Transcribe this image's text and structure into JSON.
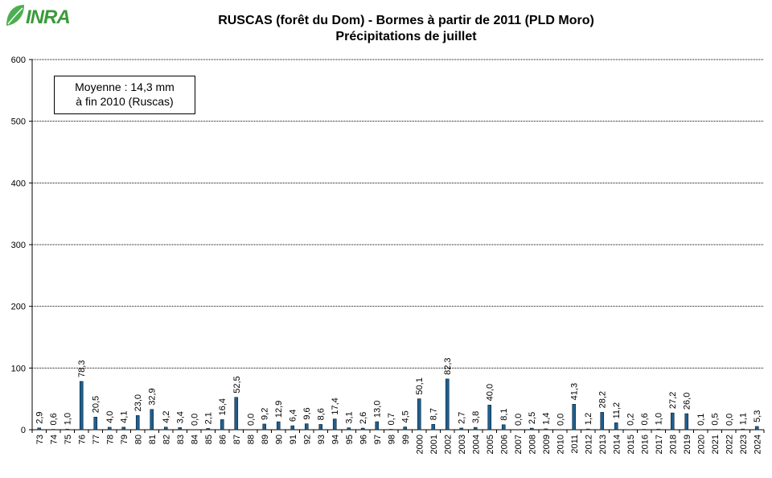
{
  "logo": {
    "text": "INRA"
  },
  "chart_data": {
    "type": "bar",
    "title": "RUSCAS (forêt du Dom) - Bormes à partir de 2011 (PLD Moro)",
    "subtitle": "Précipitations de juillet",
    "xlabel": "",
    "ylabel": "",
    "ylim": [
      0,
      600
    ],
    "yticks": [
      "0",
      "100",
      "200",
      "300",
      "400",
      "500",
      "600"
    ],
    "grid": true,
    "annotation": [
      "Moyenne : 14,3 mm",
      "à fin 2010 (Ruscas)"
    ],
    "categories": [
      "73",
      "74",
      "75",
      "76",
      "77",
      "78",
      "79",
      "80",
      "81",
      "82",
      "83",
      "84",
      "85",
      "86",
      "87",
      "88",
      "89",
      "90",
      "91",
      "92",
      "93",
      "94",
      "95",
      "96",
      "97",
      "98",
      "99",
      "2000",
      "2001",
      "2002",
      "2003",
      "2004",
      "2005",
      "2006",
      "2007",
      "2008",
      "2009",
      "2010",
      "2011",
      "2012",
      "2013",
      "2014",
      "2015",
      "2016",
      "2017",
      "2018",
      "2019",
      "2020",
      "2021",
      "2022",
      "2023",
      "2024"
    ],
    "values": [
      2.9,
      0.6,
      1.0,
      78.3,
      20.5,
      4.0,
      4.1,
      23.0,
      32.9,
      4.2,
      3.4,
      0.0,
      2.1,
      16.4,
      52.5,
      0.0,
      9.2,
      12.9,
      6.4,
      9.6,
      8.6,
      17.4,
      3.1,
      2.6,
      13.0,
      0.7,
      4.5,
      50.1,
      8.7,
      82.3,
      2.7,
      3.8,
      40.0,
      8.1,
      0.0,
      2.5,
      1.4,
      0.0,
      41.3,
      1.2,
      28.2,
      11.2,
      0.2,
      0.6,
      1.0,
      27.2,
      26.0,
      0.1,
      0.5,
      0.0,
      1.1,
      5.3
    ],
    "value_labels": [
      "2,9",
      "0,6",
      "1,0",
      "78,3",
      "20,5",
      "4,0",
      "4,1",
      "23,0",
      "32,9",
      "4,2",
      "3,4",
      "0,0",
      "2,1",
      "16,4",
      "52,5",
      "0,0",
      "9,2",
      "12,9",
      "6,4",
      "9,6",
      "8,6",
      "17,4",
      "3,1",
      "2,6",
      "13,0",
      "0,7",
      "4,5",
      "50,1",
      "8,7",
      "82,3",
      "2,7",
      "3,8",
      "40,0",
      "8,1",
      "0,0",
      "2,5",
      "1,4",
      "0,0",
      "41,3",
      "1,2",
      "28,2",
      "11,2",
      "0,2",
      "0,6",
      "1,0",
      "27,2",
      "26,0",
      "0,1",
      "0,5",
      "0,0",
      "1,1",
      "5,3"
    ],
    "colors": {
      "bar_fill": "#1f5f8f",
      "bar_stroke": "#0a2233",
      "grid": "#000000"
    }
  }
}
